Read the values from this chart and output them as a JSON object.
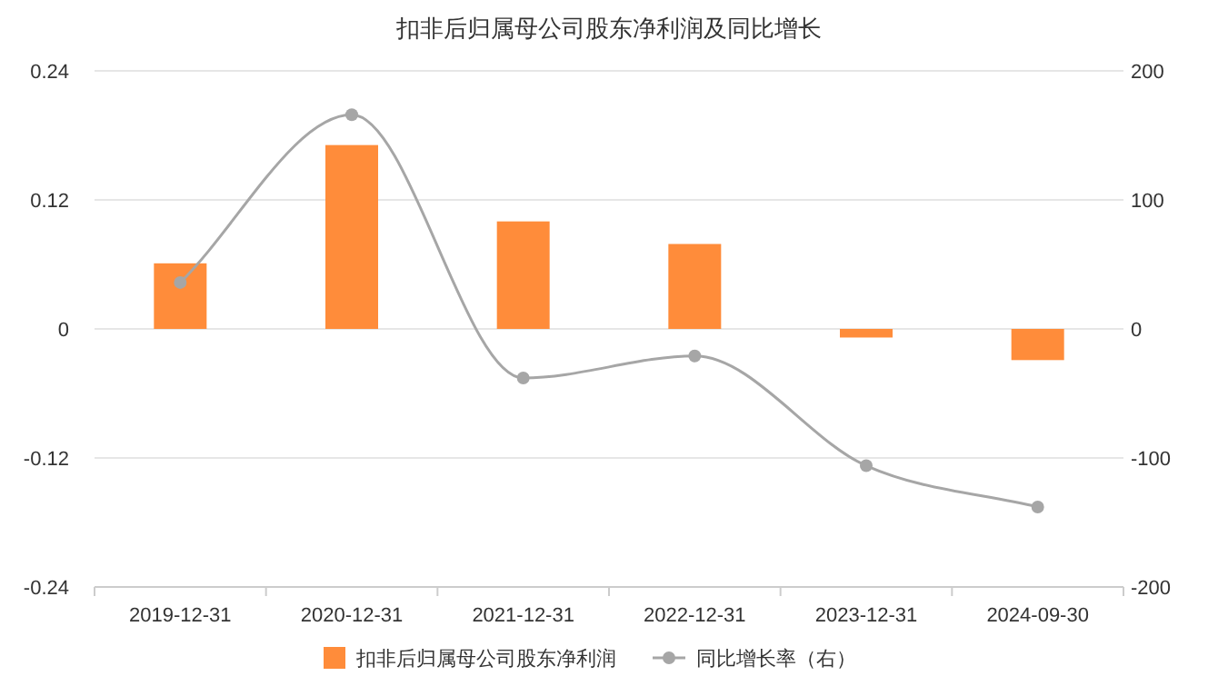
{
  "chart_data": {
    "type": "bar",
    "title": "扣非后归属母公司股东净利润及同比增长",
    "categories": [
      "2019-12-31",
      "2020-12-31",
      "2021-12-31",
      "2022-12-31",
      "2023-12-31",
      "2024-09-30"
    ],
    "series": [
      {
        "name": "扣非后归属母公司股东净利润",
        "color": "#ff8c3a",
        "values": [
          0.061,
          0.171,
          0.1,
          0.079,
          -0.008,
          -0.029
        ]
      },
      {
        "name": "同比增长率（右）",
        "type": "line",
        "axis": "y2",
        "color": "#a6a6a6",
        "values": [
          36,
          166,
          -38,
          -21,
          -106,
          -138
        ]
      }
    ],
    "ylim": [
      -0.24,
      0.24
    ],
    "yticks": [
      -0.24,
      -0.12,
      0,
      0.12,
      0.24
    ],
    "y2lim": [
      -200,
      200
    ],
    "y2ticks": [
      -200,
      -100,
      0,
      100,
      200
    ],
    "grid": "y",
    "legend": "bottom",
    "marker": "circle"
  }
}
